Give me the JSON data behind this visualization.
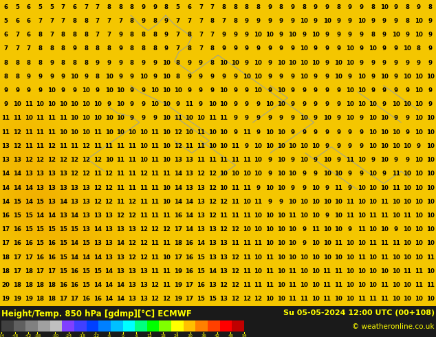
{
  "title_left": "Height/Temp. 850 hPa [gdmp][°C] ECMWF",
  "title_right": "Su 05-05-2024 12:00 UTC (00+108)",
  "copyright": "© weatheronline.co.uk",
  "colorbar_ticks": [
    -54,
    -48,
    -42,
    -38,
    -30,
    -24,
    -18,
    -12,
    -6,
    0,
    6,
    12,
    18,
    24,
    30,
    36,
    42,
    48,
    54
  ],
  "colorbar_tick_labels": [
    "-54",
    "-48",
    "-42",
    "-38",
    "-30",
    "-24",
    "-18",
    "-12",
    "-6",
    "0",
    "6",
    "12",
    "18",
    "24",
    "30",
    "36",
    "42",
    "48",
    "54"
  ],
  "colorbar_colors": [
    "#404040",
    "#606060",
    "#808080",
    "#a0a0a0",
    "#c0c0c0",
    "#8040ff",
    "#4040ff",
    "#0040ff",
    "#0080ff",
    "#00c0ff",
    "#00ffff",
    "#00ff80",
    "#00ff00",
    "#80ff00",
    "#ffff00",
    "#ffc000",
    "#ff8000",
    "#ff4000",
    "#ff0000",
    "#c00000"
  ],
  "bg_color_top": "#f5c800",
  "bg_color_warm": "#f0a000",
  "map_text_color": "#000000",
  "contour_line_color": "#8899bb",
  "bottom_bar_color": "#1a1a1a",
  "bottom_text_color": "#ffff00",
  "figsize": [
    6.34,
    4.9
  ],
  "dpi": 100,
  "num_rows": 22,
  "num_cols": 38,
  "font_size": 6.2
}
